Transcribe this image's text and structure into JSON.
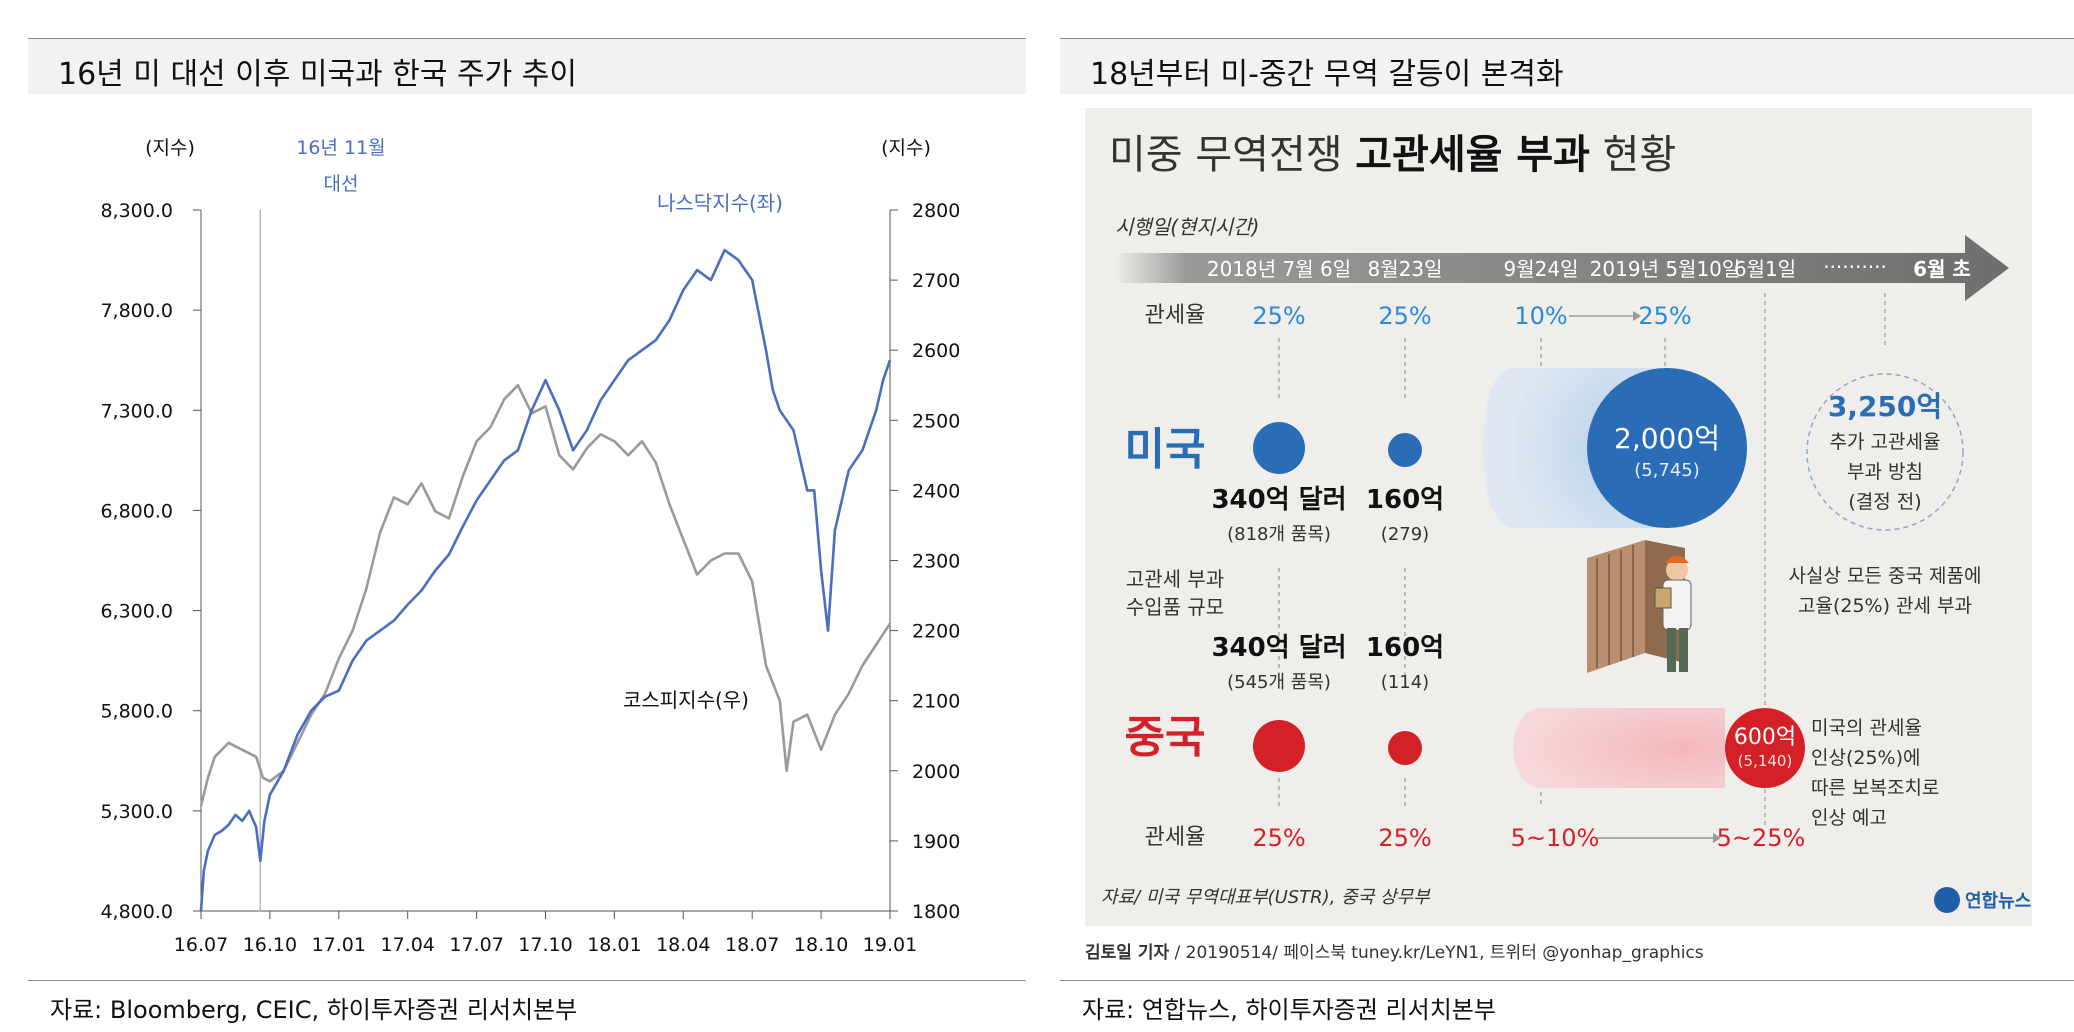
{
  "left_panel": {
    "title": "16년 미 대선 이후 미국과 한국 주가 추이",
    "source": "자료: Bloomberg, CEIC, 하이투자증권 리서치본부"
  },
  "right_panel": {
    "title": "18년부터 미-중간 무역 갈등이 본격화",
    "source": "자료: 연합뉴스, 하이투자증권 리서치본부"
  },
  "chart_data": {
    "type": "line",
    "x_ticks": [
      "16.07",
      "16.10",
      "17.01",
      "17.04",
      "17.07",
      "17.10",
      "18.01",
      "18.04",
      "18.07",
      "18.10",
      "19.01"
    ],
    "y_left_label": "(지수)",
    "y_right_label": "(지수)",
    "y_left_ticks": [
      "8,300.0",
      "7,800.0",
      "7,300.0",
      "6,800.0",
      "6,300.0",
      "5,800.0",
      "5,300.0",
      "4,800.0"
    ],
    "y_right_ticks": [
      "2800",
      "2700",
      "2600",
      "2500",
      "2400",
      "2300",
      "2200",
      "2100",
      "2000",
      "1900",
      "1800"
    ],
    "ylim_left": [
      4800,
      8300
    ],
    "ylim_right": [
      1800,
      2800
    ],
    "annotation": {
      "line1": "16년 11월",
      "line2": "대선",
      "x": 4.3
    },
    "series": [
      {
        "name": "나스닥지수(좌)",
        "axis": "left",
        "color": "#4a6fc0",
        "points": [
          [
            0,
            4800
          ],
          [
            0.2,
            5000
          ],
          [
            0.5,
            5100
          ],
          [
            1,
            5180
          ],
          [
            1.5,
            5200
          ],
          [
            2,
            5230
          ],
          [
            2.5,
            5280
          ],
          [
            3,
            5250
          ],
          [
            3.5,
            5300
          ],
          [
            4,
            5220
          ],
          [
            4.3,
            5050
          ],
          [
            4.6,
            5250
          ],
          [
            5,
            5380
          ],
          [
            6,
            5500
          ],
          [
            7,
            5680
          ],
          [
            8,
            5800
          ],
          [
            9,
            5870
          ],
          [
            10,
            5900
          ],
          [
            11,
            6050
          ],
          [
            12,
            6150
          ],
          [
            13,
            6200
          ],
          [
            14,
            6250
          ],
          [
            15,
            6330
          ],
          [
            16,
            6400
          ],
          [
            17,
            6500
          ],
          [
            18,
            6580
          ],
          [
            19,
            6720
          ],
          [
            20,
            6850
          ],
          [
            21,
            6950
          ],
          [
            22,
            7050
          ],
          [
            23,
            7100
          ],
          [
            24,
            7300
          ],
          [
            25,
            7450
          ],
          [
            26,
            7300
          ],
          [
            27,
            7100
          ],
          [
            28,
            7200
          ],
          [
            29,
            7350
          ],
          [
            30,
            7450
          ],
          [
            31,
            7550
          ],
          [
            32,
            7600
          ],
          [
            33,
            7650
          ],
          [
            34,
            7750
          ],
          [
            35,
            7900
          ],
          [
            36,
            8000
          ],
          [
            37,
            7950
          ],
          [
            38,
            8100
          ],
          [
            39,
            8050
          ],
          [
            40,
            7950
          ],
          [
            41,
            7600
          ],
          [
            41.5,
            7400
          ],
          [
            42,
            7300
          ],
          [
            43,
            7200
          ],
          [
            43.5,
            7050
          ],
          [
            44,
            6900
          ],
          [
            44.5,
            6900
          ],
          [
            45,
            6500
          ],
          [
            45.5,
            6200
          ],
          [
            46,
            6700
          ],
          [
            47,
            7000
          ],
          [
            48,
            7100
          ],
          [
            49,
            7300
          ],
          [
            49.5,
            7450
          ],
          [
            50,
            7550
          ]
        ]
      },
      {
        "name": "코스피지수(우)",
        "axis": "right",
        "color": "#9a9a9a",
        "points": [
          [
            0,
            1950
          ],
          [
            0.5,
            1990
          ],
          [
            1,
            2020
          ],
          [
            2,
            2040
          ],
          [
            3,
            2030
          ],
          [
            4,
            2020
          ],
          [
            4.5,
            1990
          ],
          [
            5,
            1985
          ],
          [
            6,
            2000
          ],
          [
            7,
            2040
          ],
          [
            8,
            2080
          ],
          [
            9,
            2110
          ],
          [
            10,
            2160
          ],
          [
            11,
            2200
          ],
          [
            12,
            2260
          ],
          [
            13,
            2340
          ],
          [
            14,
            2390
          ],
          [
            15,
            2380
          ],
          [
            16,
            2410
          ],
          [
            17,
            2370
          ],
          [
            18,
            2360
          ],
          [
            19,
            2420
          ],
          [
            20,
            2470
          ],
          [
            21,
            2490
          ],
          [
            22,
            2530
          ],
          [
            23,
            2550
          ],
          [
            24,
            2510
          ],
          [
            25,
            2520
          ],
          [
            26,
            2450
          ],
          [
            27,
            2430
          ],
          [
            28,
            2460
          ],
          [
            29,
            2480
          ],
          [
            30,
            2470
          ],
          [
            31,
            2450
          ],
          [
            32,
            2470
          ],
          [
            33,
            2440
          ],
          [
            34,
            2380
          ],
          [
            35,
            2330
          ],
          [
            36,
            2280
          ],
          [
            37,
            2300
          ],
          [
            38,
            2310
          ],
          [
            39,
            2310
          ],
          [
            40,
            2270
          ],
          [
            41,
            2150
          ],
          [
            42,
            2100
          ],
          [
            42.5,
            2000
          ],
          [
            43,
            2070
          ],
          [
            44,
            2080
          ],
          [
            45,
            2030
          ],
          [
            46,
            2080
          ],
          [
            47,
            2110
          ],
          [
            48,
            2150
          ],
          [
            49,
            2180
          ],
          [
            50,
            2210
          ]
        ]
      }
    ]
  },
  "infographic": {
    "title_light": "미중 무역전쟁 ",
    "title_bold": "고관세율 부과",
    "title_tail": " 현황",
    "timeline_label": "시행일(현지시간)",
    "dates": [
      "2018년 7월 6일",
      "8월23일",
      "9월24일",
      "2019년 5월10일",
      "6월1일",
      "··········",
      "6월 초"
    ],
    "rate_label": "관세율",
    "us_rates": [
      "25%",
      "25%",
      "10%",
      "25%"
    ],
    "us_label": "미국",
    "cn_label": "중국",
    "us_amounts": [
      {
        "main": "340억 달러",
        "sub": "(818개 품목)"
      },
      {
        "main": "160억",
        "sub": "(279)"
      },
      {
        "main": "2,000억",
        "sub": "(5,745)"
      }
    ],
    "us_plan": {
      "amount": "3,250억",
      "line1": "추가 고관세율",
      "line2": "부과 방침",
      "line3": "(결정 전)"
    },
    "scope_label": {
      "line1": "고관세 부과",
      "line2": "수입품 규모"
    },
    "all_goods_note": {
      "line1": "사실상 모든 중국 제품에",
      "line2": "고율(25%) 관세 부과"
    },
    "cn_amounts": [
      {
        "main": "340억 달러",
        "sub": "(545개 품목)"
      },
      {
        "main": "160억",
        "sub": "(114)"
      },
      {
        "main": "600억",
        "sub": "(5,140)"
      }
    ],
    "cn_note": {
      "line1": "미국의 관세율",
      "line2": "인상(25%)에",
      "line3": "따른 보복조치로",
      "line4": "인상 예고"
    },
    "cn_rates": [
      "25%",
      "25%",
      "5~10%",
      "5~25%"
    ],
    "source": "자료/ 미국 무역대표부(USTR), 중국 상무부",
    "logo": "연합뉴스",
    "byline_bold": "김토일 기자",
    "byline_rest": " / 20190514/ 페이스북 tuney.kr/LeYN1, 트위터 @yonhap_graphics"
  },
  "colors": {
    "us_blue": "#2a6cb5",
    "cn_red": "#d42128",
    "nasdaq": "#4a6fc0",
    "kospi": "#9a9a9a",
    "arrow": "#767676"
  }
}
